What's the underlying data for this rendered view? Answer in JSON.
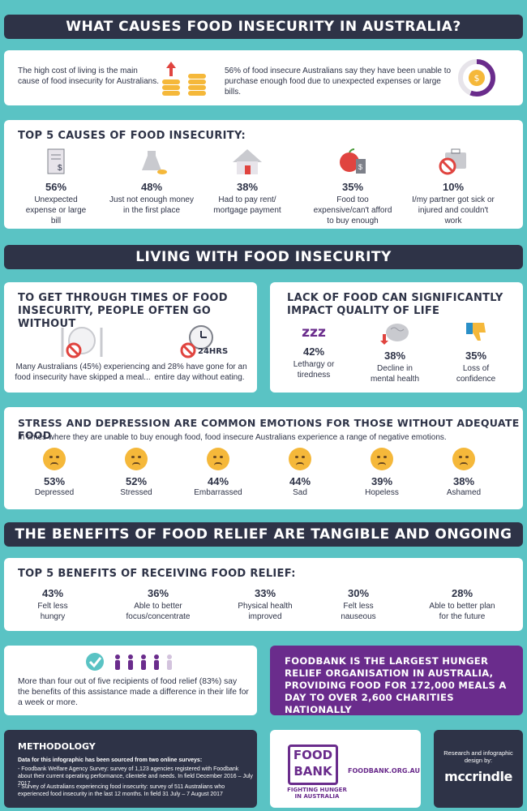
{
  "sections": {
    "causes_title": "WHAT CAUSES FOOD INSECURITY IN AUSTRALIA?",
    "living_title": "LIVING WITH FOOD INSECURITY",
    "benefits_title": "THE BENEFITS OF FOOD RELIEF ARE TANGIBLE AND ONGOING"
  },
  "intro": {
    "left_text": "The high cost of living is the main cause of food insecurity for Australians.",
    "right_text": "56% of food insecure Australians say they have been unable to purchase enough food due to unexpected expenses or large bills."
  },
  "causes": {
    "title": "TOP 5 CAUSES OF FOOD INSECURITY:",
    "items": [
      {
        "pct": "56%",
        "label": "Unexpected expense or large bill",
        "icon": "bill-icon"
      },
      {
        "pct": "48%",
        "label": "Just not enough money in the first place",
        "icon": "money-bag-icon"
      },
      {
        "pct": "38%",
        "label": "Had to pay rent/ mortgage payment",
        "icon": "house-icon"
      },
      {
        "pct": "35%",
        "label": "Food too expensive/can't afford to buy enough",
        "icon": "apple-price-icon"
      },
      {
        "pct": "10%",
        "label": "I/my partner got sick or injured and couldn't work",
        "icon": "briefcase-no-icon"
      }
    ]
  },
  "go_without": {
    "title": "TO GET THROUGH TIMES OF FOOD INSECURITY, PEOPLE OFTEN GO WITHOUT",
    "left_text": "Many Australians (45%) experiencing food insecurity have skipped a meal...",
    "right_text": "and 28% have gone for an entire day without eating.",
    "clock_label": "24HRS"
  },
  "quality": {
    "title": "LACK OF FOOD CAN SIGNIFICANTLY IMPACT QUALITY OF LIFE",
    "zzz": "zzz",
    "items": [
      {
        "pct": "42%",
        "label": "Lethargy or tiredness"
      },
      {
        "pct": "38%",
        "label": "Decline in mental health"
      },
      {
        "pct": "35%",
        "label": "Loss of confidence"
      }
    ]
  },
  "emotions": {
    "title": "STRESS AND DEPRESSION ARE COMMON EMOTIONS FOR THOSE WITHOUT ADEQUATE FOOD",
    "subtitle": "In times where they are unable to buy enough food, food insecure Australians experience a range of negative emotions.",
    "items": [
      {
        "pct": "53%",
        "label": "Depressed"
      },
      {
        "pct": "52%",
        "label": "Stressed"
      },
      {
        "pct": "44%",
        "label": "Embarrassed"
      },
      {
        "pct": "44%",
        "label": "Sad"
      },
      {
        "pct": "39%",
        "label": "Hopeless"
      },
      {
        "pct": "38%",
        "label": "Ashamed"
      }
    ]
  },
  "benefits": {
    "title": "TOP 5 BENEFITS OF RECEIVING FOOD RELIEF:",
    "items": [
      {
        "pct": "43%",
        "label": "Felt less hungry"
      },
      {
        "pct": "36%",
        "label": "Able to better focus/concentrate"
      },
      {
        "pct": "33%",
        "label": "Physical health improved"
      },
      {
        "pct": "30%",
        "label": "Felt less nauseous"
      },
      {
        "pct": "28%",
        "label": "Able to better plan for the future"
      }
    ],
    "five_text": "More than four out of five recipients of food relief (83%) say the benefits of this assistance made a difference in their life for a week or more.",
    "foodbank_text": "FOODBANK IS THE LARGEST HUNGER RELIEF ORGANISATION IN AUSTRALIA, PROVIDING FOOD FOR 172,000 MEALS A DAY TO OVER 2,600 CHARITIES NATIONALLY"
  },
  "methodology": {
    "title": "METHODOLOGY",
    "intro": "Data for this infographic has been sourced from two online surveys:",
    "item1": "- Foodbank Welfare Agency Survey: survey of 1,123 agencies registered with Foodbank about their current operating performance, clientele and needs. In field December 2016 – July 2017",
    "item2": "- Survey of Australians experiencing food insecurity: survey of 511 Australians who experienced food insecurity in the last 12 months. In field 31 July – 7 August 2017"
  },
  "logo": {
    "line1": "FOOD",
    "line2": "BANK",
    "tagline": "FIGHTING HUNGER IN AUSTRALIA",
    "url": "FOODBANK.ORG.AU"
  },
  "credit": {
    "text": "Research and infographic design by:",
    "brand": "mccrindle"
  },
  "colors": {
    "teal": "#5ac3c4",
    "navy": "#2e3347",
    "purple": "#6a2c8c",
    "red": "#e0443f",
    "gold": "#f5b83a"
  }
}
